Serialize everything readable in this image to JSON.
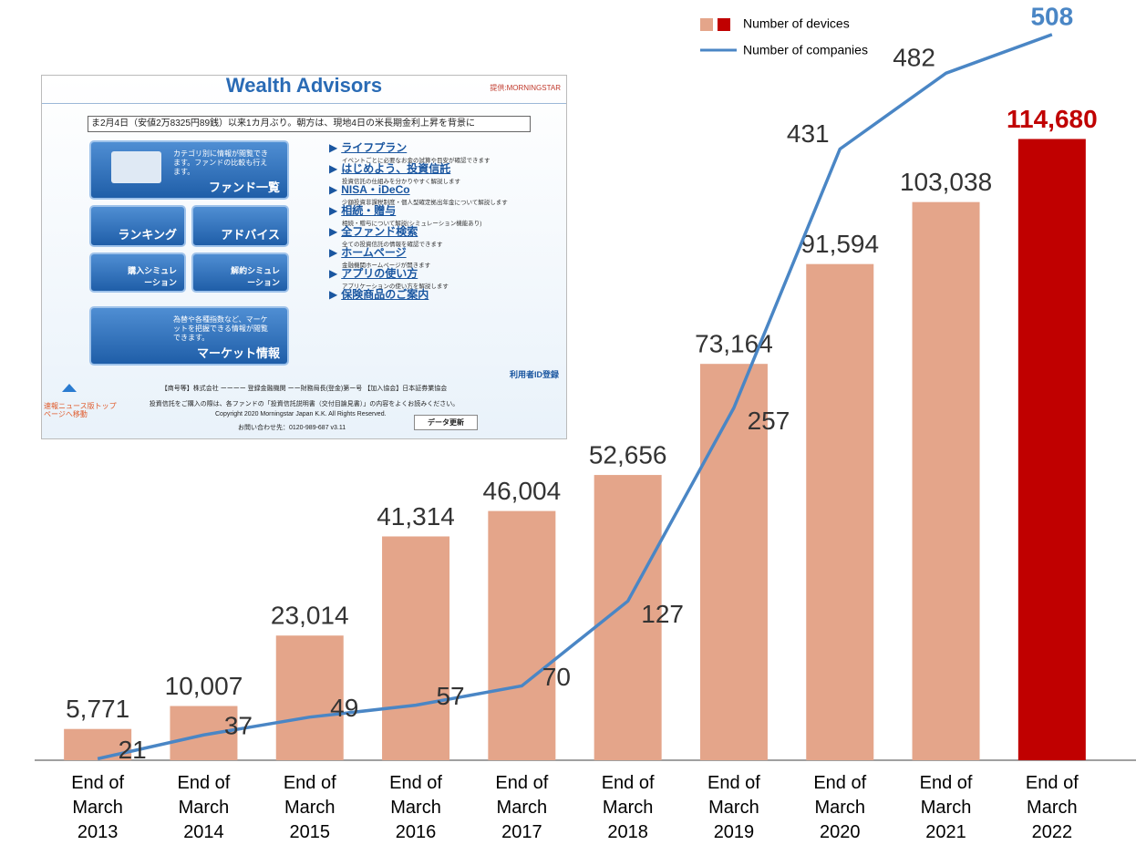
{
  "chart_data": {
    "type": "bar_line",
    "categories": [
      "End of March 2013",
      "End of March 2014",
      "End of March 2015",
      "End of March 2016",
      "End of March 2017",
      "End of March 2018",
      "End of March 2019",
      "End of March 2020",
      "End of March 2021",
      "End of March 2022"
    ],
    "series": [
      {
        "name": "Number of devices",
        "type": "bar",
        "color": "#e4a58a",
        "colors": [
          "#e4a58a",
          "#e4a58a",
          "#e4a58a",
          "#e4a58a",
          "#e4a58a",
          "#e4a58a",
          "#e4a58a",
          "#e4a58a",
          "#e4a58a",
          "#c00000"
        ],
        "values": [
          5771,
          10007,
          23014,
          41314,
          46004,
          52656,
          73164,
          91594,
          103038,
          114680
        ],
        "value_labels": [
          "5,771",
          "10,007",
          "23,014",
          "41,314",
          "46,004",
          "52,656",
          "73,164",
          "91,594",
          "103,038",
          "114,680"
        ]
      },
      {
        "name": "Number of companies",
        "type": "line",
        "axis": "y2",
        "color": "#4a86c5",
        "values": [
          21,
          37,
          49,
          57,
          70,
          127,
          257,
          431,
          482,
          508
        ]
      }
    ],
    "ylim": [
      0,
      140000
    ],
    "y2lim": [
      20,
      530
    ],
    "grid": false,
    "legend": "top-right"
  },
  "inset": {
    "title": "Wealth Advisors",
    "provider": "提供:MORNINGSTAR",
    "ticker": "ま2月4日（安値2万8325円89銭）以来1カ月ぶり。朝方は、現地4日の米長期金利上昇を背景に",
    "fund_list": {
      "description": "カテゴリ別に情報が閲覧できます。ファンドの比較も行えます。",
      "label": "ファンド一覧"
    },
    "ranking": "ランキング",
    "advice": "アドバイス",
    "purchase": "購入シミュレーション",
    "cancel": "解約シミュレーション",
    "market": {
      "description": "為替や各種指数など、マーケットを把握できる情報が閲覧できます。",
      "label": "マーケット情報"
    },
    "menu": [
      {
        "label": "ライフプラン",
        "description": "イベントごとに必要なお金の試算や目安が確認できます"
      },
      {
        "label": "はじめよう、投資信託",
        "description": "投資信託の仕組みを分かりやすく解説します"
      },
      {
        "label": "NISA・iDeCo",
        "description": "少額投資非課税制度・個人型確定拠出年金について解説します"
      },
      {
        "label": "相続・贈与",
        "description": "相続・贈与について解説(シミュレーション機能あり)"
      },
      {
        "label": "全ファンド検索",
        "description": "全ての投資信託の情報を確認できます"
      },
      {
        "label": "ホームページ",
        "description": "金融機関ホームページが開きます"
      },
      {
        "label": "アプリの使い方",
        "description": "アプリケーションの使い方を解説します"
      },
      {
        "label": "保険商品のご案内",
        "description": ""
      }
    ],
    "user_id": "利用者ID登録",
    "news_link": "速報ニュース版トップページへ移動",
    "footer": [
      "【商号等】株式会社 ーーーー 登録金融機関 ーー財務局長(登金)第ー号 【加入協会】日本証券業協会",
      "投資信託をご購入の際は、各ファンドの「投資信託説明書（交付目論見書）」の内容をよくお読みください。",
      "Copyright 2020 Morningstar Japan K.K. All Rights Reserved.",
      "お問い合わせ先：0120-989-687 v3.11"
    ],
    "update": "データ更新"
  }
}
